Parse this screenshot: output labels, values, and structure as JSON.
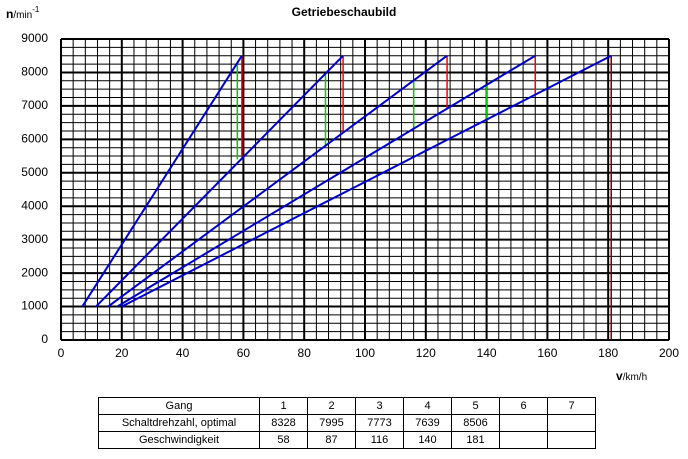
{
  "chart_data": {
    "type": "line",
    "title": "Getriebeschaubild",
    "ylabel": [
      "n",
      "/min",
      "-1"
    ],
    "xlabel": [
      "v",
      "/km/h"
    ],
    "xlim": [
      0,
      200
    ],
    "xticks": [
      0,
      20,
      40,
      60,
      80,
      100,
      120,
      140,
      160,
      180,
      200
    ],
    "ylim": [
      0,
      9000
    ],
    "yticks": [
      0,
      1000,
      2000,
      3000,
      4000,
      5000,
      6000,
      7000,
      8000,
      9000
    ],
    "grid": true,
    "series": [
      {
        "color": "#0000cc",
        "x": [
          7,
          59.5
        ],
        "values": [
          1000,
          8500
        ]
      },
      {
        "color": "#0000cc",
        "x": [
          11.5,
          92.8
        ],
        "values": [
          1000,
          8500
        ]
      },
      {
        "color": "#0000cc",
        "x": [
          15.5,
          127
        ],
        "values": [
          1000,
          8500
        ]
      },
      {
        "color": "#0000cc",
        "x": [
          18.5,
          156
        ],
        "values": [
          1000,
          8500
        ]
      },
      {
        "color": "#0000cc",
        "x": [
          20,
          181
        ],
        "values": [
          1000,
          8500
        ]
      }
    ],
    "vlines": [
      {
        "color": "#00cc00",
        "x": 58,
        "values": [
          8300,
          5400
        ]
      },
      {
        "color": "#00cc00",
        "x": 87,
        "values": [
          7970,
          5800
        ]
      },
      {
        "color": "#00cc00",
        "x": 116,
        "values": [
          7760,
          6300
        ]
      },
      {
        "color": "#00cc00",
        "x": 140,
        "values": [
          7620,
          6600
        ]
      },
      {
        "color": "#ff0000",
        "x": 59.5,
        "values": [
          8500,
          5430
        ]
      },
      {
        "color": "#ff0000",
        "x": 92.8,
        "values": [
          8500,
          6200
        ]
      },
      {
        "color": "#ff0000",
        "x": 127,
        "values": [
          8500,
          6900
        ]
      },
      {
        "color": "#ff0000",
        "x": 156,
        "values": [
          8500,
          7340
        ]
      },
      {
        "color": "#800000",
        "x": 181,
        "values": [
          8500,
          0
        ]
      }
    ]
  },
  "table": {
    "header": [
      "Gang",
      "1",
      "2",
      "3",
      "4",
      "5",
      "6",
      "7"
    ],
    "rows": [
      [
        "Schaltdrehzahl, optimal",
        8328,
        7995,
        7773,
        7639,
        8506,
        null,
        null
      ],
      [
        "Geschwindigkeit",
        58,
        87,
        116,
        140,
        181,
        null,
        null
      ]
    ]
  }
}
